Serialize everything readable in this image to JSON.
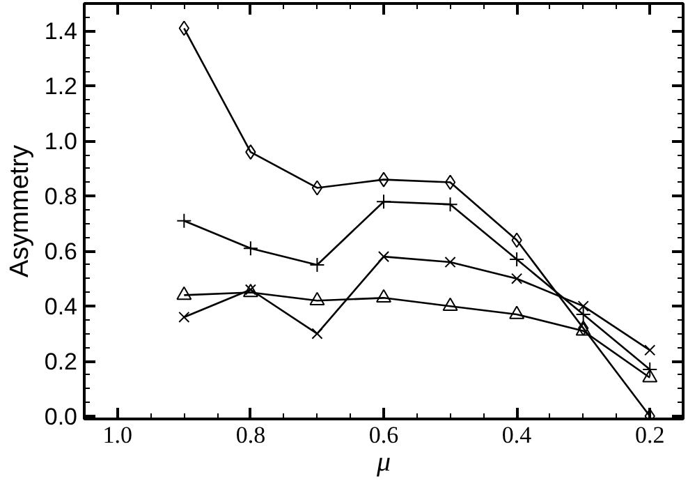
{
  "chart_data": {
    "type": "line",
    "xlabel": "μ",
    "ylabel": "Asymmetry",
    "x": [
      0.9,
      0.8,
      0.7,
      0.6,
      0.5,
      0.4,
      0.3,
      0.2
    ],
    "series": [
      {
        "color": "#000000",
        "marker": "diamond",
        "values": [
          1.41,
          0.96,
          0.83,
          0.86,
          0.85,
          0.64,
          0.32,
          0.0
        ]
      },
      {
        "color": "#000000",
        "marker": "cross",
        "x": [
          0.9,
          0.8,
          0.7,
          0.6,
          0.5,
          0.4,
          0.3,
          0.2
        ],
        "values": [
          0.71,
          0.61,
          0.55,
          0.78,
          0.77,
          0.57,
          0.37,
          0.17
        ]
      },
      {
        "color": "#000000",
        "marker": "x",
        "values": [
          0.36,
          0.46,
          0.3,
          0.58,
          0.56,
          0.5,
          0.4,
          0.24
        ]
      },
      {
        "color": "#000000",
        "marker": "triangle",
        "values": [
          0.44,
          0.45,
          0.42,
          0.43,
          0.4,
          0.37,
          0.31,
          0.14
        ]
      }
    ],
    "xlim": [
      1.05,
      0.15
    ],
    "ylim": [
      -0.01,
      1.5
    ],
    "xticks": [
      {
        "value": 1.0,
        "label": "1.0"
      },
      0.8,
      0.6,
      0.4,
      0.2
    ],
    "yticks": [
      {
        "value": 0.0,
        "label": "0.0"
      },
      0.2,
      0.4,
      0.6,
      0.8,
      {
        "value": 1.0,
        "label": "1.0"
      },
      1.2,
      1.4
    ],
    "grid": false
  }
}
